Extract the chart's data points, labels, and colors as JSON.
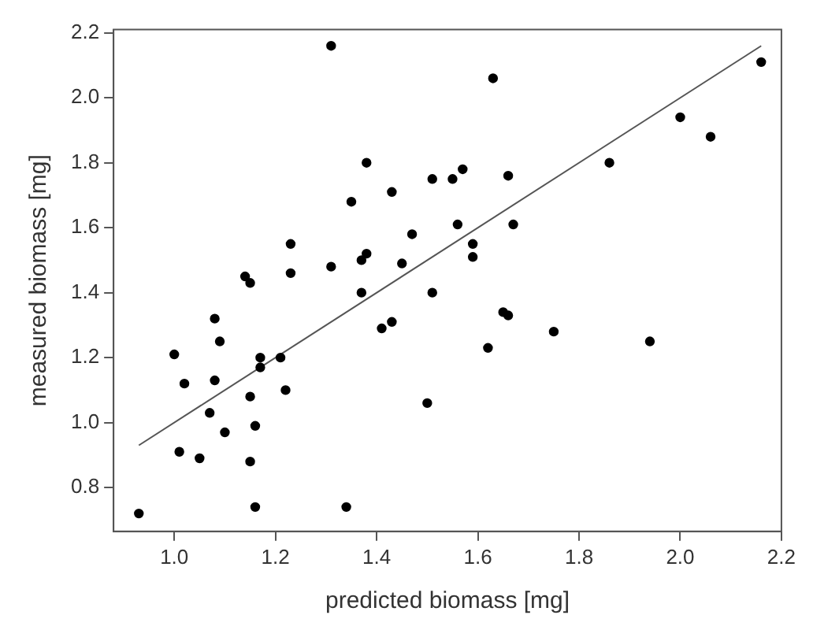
{
  "chart_data": {
    "type": "scatter",
    "xlabel": "predicted biomass [mg]",
    "ylabel": "measured biomass [mg]",
    "xlim": [
      0.88,
      2.2
    ],
    "ylim": [
      0.665,
      2.21
    ],
    "xticks": [
      {
        "value": 1,
        "label": "1.0"
      },
      1.2,
      1.4,
      1.6,
      1.8,
      {
        "value": 2,
        "label": "2.0"
      },
      2.2
    ],
    "yticks": [
      0.8,
      {
        "value": 1,
        "label": "1.0"
      },
      1.2,
      1.4,
      1.6,
      1.8,
      {
        "value": 2,
        "label": "2.0"
      },
      2.2
    ],
    "grid": false,
    "legend": false,
    "marker": "circle",
    "series": [
      {
        "color": "#000000",
        "x": [
          1.31,
          1.38,
          1.51,
          1.43,
          1.35,
          1.47,
          1.23,
          1.14,
          1.15,
          1.23,
          1.31,
          1.38,
          1.37,
          1.45,
          1.37,
          1.51,
          1.63,
          2.16,
          2.0,
          2.06,
          1.86,
          1.55,
          1.57,
          1.66,
          1.56,
          1.67,
          1.59,
          1.59,
          1.08,
          1.09,
          1.0,
          1.02,
          1.08,
          1.17,
          1.17,
          1.21,
          1.22,
          1.15,
          1.07,
          1.1,
          1.16,
          1.01,
          1.05,
          1.15,
          0.93,
          1.16,
          1.34,
          1.41,
          1.43,
          1.5,
          1.66,
          1.65,
          1.62,
          1.75,
          1.94
        ],
        "values": [
          2.16,
          1.8,
          1.75,
          1.71,
          1.68,
          1.58,
          1.55,
          1.45,
          1.43,
          1.46,
          1.48,
          1.52,
          1.5,
          1.49,
          1.4,
          1.4,
          2.06,
          2.11,
          1.94,
          1.88,
          1.8,
          1.75,
          1.78,
          1.76,
          1.61,
          1.61,
          1.55,
          1.51,
          1.32,
          1.25,
          1.21,
          1.12,
          1.13,
          1.2,
          1.17,
          1.2,
          1.1,
          1.08,
          1.03,
          0.97,
          0.99,
          0.91,
          0.89,
          0.88,
          0.72,
          0.74,
          0.74,
          1.29,
          1.31,
          1.06,
          1.33,
          1.34,
          1.23,
          1.28,
          1.25
        ]
      },
      {
        "type": "line",
        "color": "#555555",
        "marker": "none",
        "x": [
          0.93,
          2.16
        ],
        "values": [
          0.93,
          2.16
        ]
      }
    ]
  }
}
